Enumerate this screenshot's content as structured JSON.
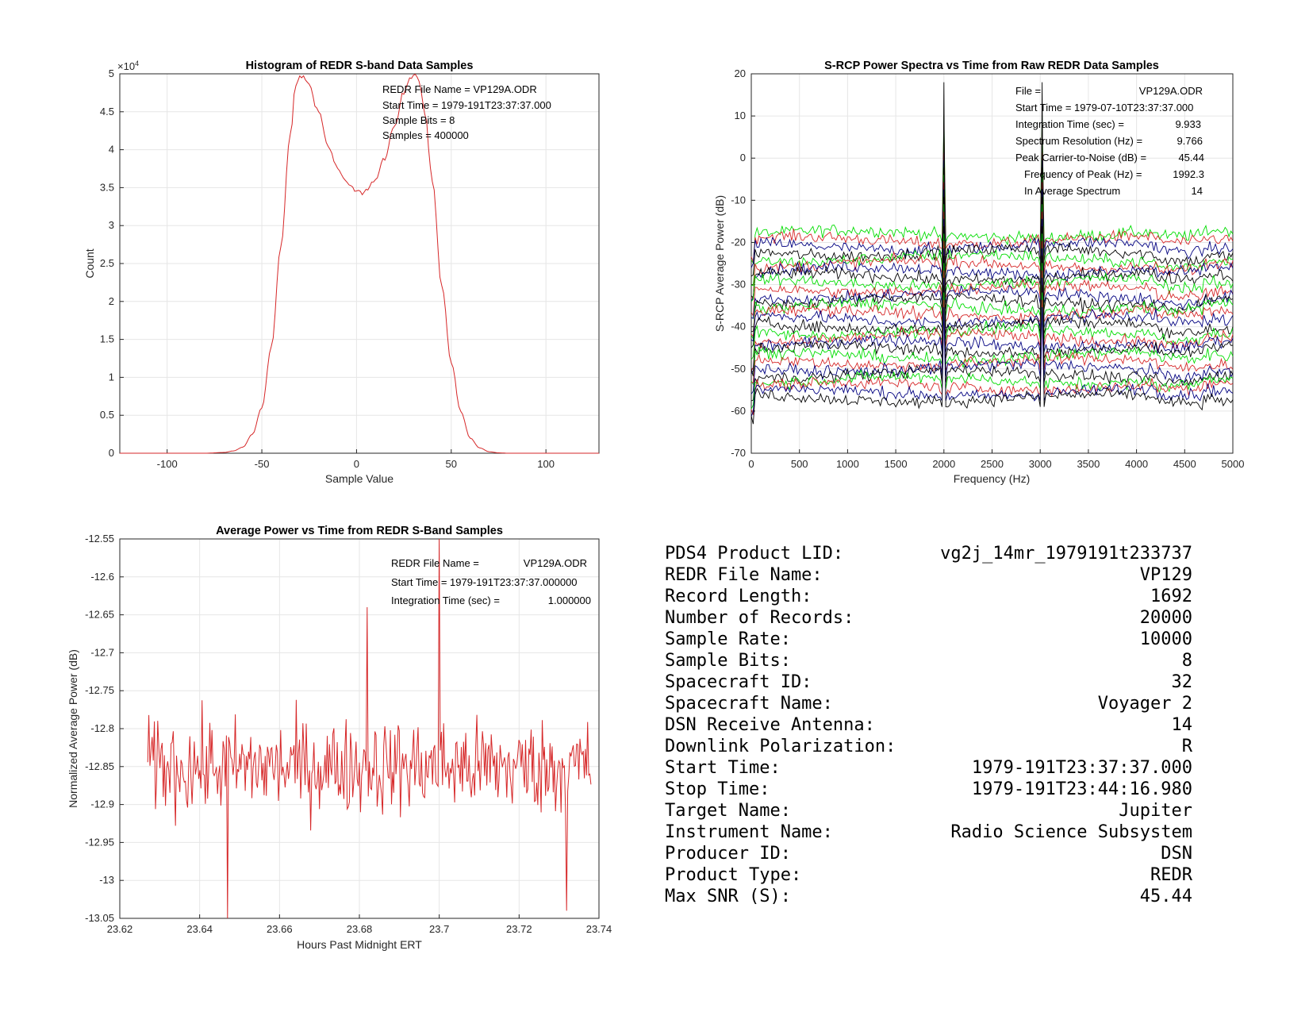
{
  "chart_data": [
    {
      "type": "line",
      "title": "Histogram of REDR S-band Data Samples",
      "xlabel": "Sample Value",
      "ylabel": "Count",
      "y_multiplier": "×10",
      "y_multiplier_exp": "4",
      "xlim": [
        -125,
        128
      ],
      "ylim": [
        0,
        50000
      ],
      "xticks": [
        -100,
        -50,
        0,
        50,
        100
      ],
      "xtick_labels": [
        "-100",
        "-50",
        "0",
        "50",
        "100"
      ],
      "yticks": [
        0,
        5000,
        10000,
        15000,
        20000,
        25000,
        30000,
        35000,
        40000,
        45000,
        50000
      ],
      "ytick_labels": [
        "0",
        "0.5",
        "1",
        "1.5",
        "2",
        "2.5",
        "3",
        "3.5",
        "4",
        "4.5",
        "5"
      ],
      "grid": true,
      "color": "#d62728",
      "annotations": [
        "REDR File Name = VP129A.ODR",
        "Start Time = 1979-191T23:37:37.000",
        "Sample Bits = 8",
        "Samples = 400000"
      ],
      "series": [
        {
          "x": [
            -125,
            -80,
            -70,
            -65,
            -60,
            -55,
            -50,
            -45,
            -40,
            -35,
            -32,
            -30,
            -28,
            -25,
            -20,
            -15,
            -10,
            -5,
            0,
            3,
            5,
            10,
            15,
            20,
            25,
            28,
            30,
            32,
            34,
            36,
            40,
            45,
            50,
            55,
            60,
            65,
            70,
            75,
            80,
            128
          ],
          "y": [
            0,
            0,
            100,
            300,
            800,
            2500,
            6000,
            14000,
            27000,
            42000,
            48500,
            49500,
            49700,
            48500,
            45000,
            40500,
            37500,
            35500,
            34500,
            34300,
            34800,
            36000,
            39000,
            43000,
            47500,
            49500,
            50000,
            49800,
            48000,
            45000,
            36000,
            22000,
            12000,
            5500,
            2000,
            700,
            200,
            50,
            0,
            0
          ]
        }
      ]
    },
    {
      "type": "line",
      "title": "S-RCP Power Spectra vs Time from Raw REDR Data Samples",
      "xlabel": "Frequency (Hz)",
      "ylabel": "S-RCP Average Power (dB)",
      "xlim": [
        0,
        5000
      ],
      "ylim": [
        -70,
        20
      ],
      "xticks": [
        0,
        500,
        1000,
        1500,
        2000,
        2500,
        3000,
        3500,
        4000,
        4500,
        5000
      ],
      "yticks": [
        -70,
        -60,
        -50,
        -40,
        -30,
        -20,
        -10,
        0,
        10,
        20
      ],
      "grid": true,
      "annotations": [
        {
          "label": "File =",
          "value": "VP129A.ODR"
        },
        {
          "label": "Start Time = 1979-07-10T23:37:37.000",
          "value": ""
        },
        {
          "label": "Integration Time (sec) =",
          "value": "9.933"
        },
        {
          "label": "Spectrum Resolution (Hz) =",
          "value": "9.766"
        },
        {
          "label": "Peak Carrier-to-Noise (dB) =",
          "value": "45.44"
        },
        {
          "label": "Frequency of Peak (Hz) =",
          "value": "1992.3"
        },
        {
          "label": "In Average Spectrum",
          "value": "14"
        }
      ],
      "series_count": 28,
      "series_baseline_top_db": -18,
      "series_baseline_bottom_db": -57,
      "series_colors": [
        "#00dd00",
        "#d62728",
        "#000080",
        "#000000"
      ],
      "peaks_hz": [
        1992.3,
        3020
      ],
      "peak_max_db": 18
    },
    {
      "type": "line",
      "title": "Average Power vs Time from REDR S-Band Samples",
      "xlabel": "Hours Past Midnight ERT",
      "ylabel": "Normalized Average Power (dB)",
      "xlim": [
        23.62,
        23.74
      ],
      "ylim": [
        -13.05,
        -12.55
      ],
      "xticks": [
        23.62,
        23.64,
        23.66,
        23.68,
        23.7,
        23.72,
        23.74
      ],
      "xtick_labels": [
        "23.62",
        "23.64",
        "23.66",
        "23.68",
        "23.7",
        "23.72",
        "23.74"
      ],
      "yticks": [
        -13.05,
        -13,
        -12.95,
        -12.9,
        -12.85,
        -12.8,
        -12.75,
        -12.7,
        -12.65,
        -12.6,
        -12.55
      ],
      "ytick_labels": [
        "-13.05",
        "-13",
        "-12.95",
        "-12.9",
        "-12.85",
        "-12.8",
        "-12.75",
        "-12.7",
        "-12.65",
        "-12.6",
        "-12.55"
      ],
      "grid": true,
      "color": "#d62728",
      "annotations": [
        {
          "label": "REDR File Name =",
          "value": "VP129A.ODR"
        },
        {
          "label": "Start Time = 1979-191T23:37:37.000000",
          "value": ""
        },
        {
          "label": "Integration Time (sec) =",
          "value": "1.000000"
        }
      ],
      "x_start": 23.627,
      "x_end": 23.738,
      "mean": -12.85,
      "noise_range": [
        -12.98,
        -12.7
      ],
      "spikes": [
        [
          23.647,
          -13.05
        ],
        [
          23.682,
          -12.64
        ],
        [
          23.7,
          -12.55
        ],
        [
          23.732,
          -13.04
        ]
      ]
    }
  ],
  "metadata": [
    {
      "label": "PDS4 Product LID:",
      "value": "vg2j_14mr_1979191t233737"
    },
    {
      "label": "REDR File Name:",
      "value": "VP129"
    },
    {
      "label": "Record Length:",
      "value": "1692"
    },
    {
      "label": "Number of Records:",
      "value": "20000"
    },
    {
      "label": "Sample Rate:",
      "value": "10000"
    },
    {
      "label": "Sample Bits:",
      "value": "8"
    },
    {
      "label": "Spacecraft ID:",
      "value": "32"
    },
    {
      "label": "Spacecraft Name:",
      "value": "Voyager 2"
    },
    {
      "label": "DSN Receive Antenna:",
      "value": "14"
    },
    {
      "label": "Downlink Polarization:",
      "value": "R"
    },
    {
      "label": "Start Time:",
      "value": "1979-191T23:37:37.000"
    },
    {
      "label": "Stop Time:",
      "value": "1979-191T23:44:16.980"
    },
    {
      "label": "Target Name:",
      "value": "Jupiter"
    },
    {
      "label": "Instrument Name:",
      "value": "Radio Science Subsystem"
    },
    {
      "label": "Producer ID:",
      "value": "DSN"
    },
    {
      "label": "Product Type:",
      "value": "REDR"
    },
    {
      "label": "Max SNR (S):",
      "value": "45.44"
    }
  ]
}
